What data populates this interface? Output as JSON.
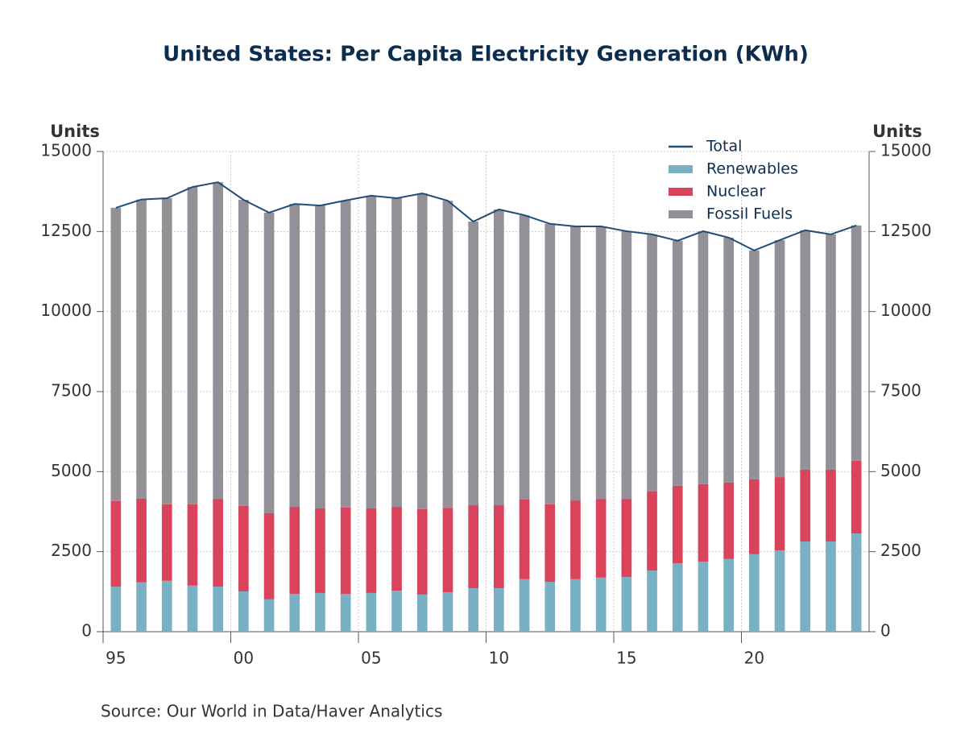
{
  "chart_data": {
    "type": "bar",
    "stacked": true,
    "title": "United States: Per Capita Electricity Generation (KWh)",
    "y_label": "Units",
    "y2_label": "Units",
    "source": "Source:  Our World in Data/Haver Analytics",
    "x": [
      1995,
      1996,
      1997,
      1998,
      1999,
      2000,
      2001,
      2002,
      2003,
      2004,
      2005,
      2006,
      2007,
      2008,
      2009,
      2010,
      2011,
      2012,
      2013,
      2014,
      2015,
      2016,
      2017,
      2018,
      2019,
      2020,
      2021,
      2022,
      2023,
      2024
    ],
    "xlim": [
      1994.5,
      2024.5
    ],
    "xticks": [
      {
        "value": 1995,
        "label": "95"
      },
      {
        "value": 2000,
        "label": "00"
      },
      {
        "value": 2005,
        "label": "05"
      },
      {
        "value": 2010,
        "label": "10"
      },
      {
        "value": 2015,
        "label": "15"
      },
      {
        "value": 2020,
        "label": "20"
      }
    ],
    "ylim": [
      0,
      15000
    ],
    "yticks": [
      0,
      2500,
      5000,
      7500,
      10000,
      12500,
      15000
    ],
    "y2lim": [
      0,
      15000
    ],
    "y2ticks": [
      0,
      2500,
      5000,
      7500,
      10000,
      12500,
      15000
    ],
    "grid": true,
    "legend": "top-right",
    "series": [
      {
        "name": "Total",
        "type": "line",
        "color": "#1f4e79",
        "values": [
          13240,
          13500,
          13540,
          13890,
          14040,
          13490,
          13090,
          13360,
          13310,
          13470,
          13620,
          13540,
          13690,
          13460,
          12810,
          13190,
          13010,
          12740,
          12660,
          12660,
          12510,
          12410,
          12210,
          12510,
          12310,
          11910,
          12230,
          12540,
          12410,
          12690
        ]
      },
      {
        "name": "Renewables",
        "type": "bar",
        "color": "#7ab0c4",
        "values": [
          1410,
          1540,
          1590,
          1440,
          1410,
          1260,
          1010,
          1180,
          1210,
          1180,
          1210,
          1280,
          1160,
          1230,
          1360,
          1360,
          1640,
          1560,
          1640,
          1690,
          1710,
          1910,
          2140,
          2190,
          2270,
          2420,
          2540,
          2820,
          2820,
          3070
        ]
      },
      {
        "name": "Nuclear",
        "type": "bar",
        "color": "#d9445c",
        "values": [
          2670,
          2620,
          2390,
          2540,
          2740,
          2670,
          2690,
          2720,
          2640,
          2700,
          2640,
          2620,
          2670,
          2640,
          2590,
          2590,
          2490,
          2420,
          2460,
          2460,
          2440,
          2470,
          2420,
          2420,
          2390,
          2340,
          2290,
          2240,
          2240,
          2270
        ]
      },
      {
        "name": "Fossil Fuels",
        "type": "bar",
        "color": "#939197",
        "values": [
          9160,
          9340,
          9560,
          9910,
          9890,
          9560,
          9390,
          9460,
          9460,
          9590,
          9770,
          9640,
          9860,
          9590,
          8860,
          9240,
          8880,
          8760,
          8560,
          8510,
          8360,
          8030,
          7650,
          7900,
          7650,
          7150,
          7400,
          7480,
          7350,
          7350
        ]
      }
    ]
  }
}
